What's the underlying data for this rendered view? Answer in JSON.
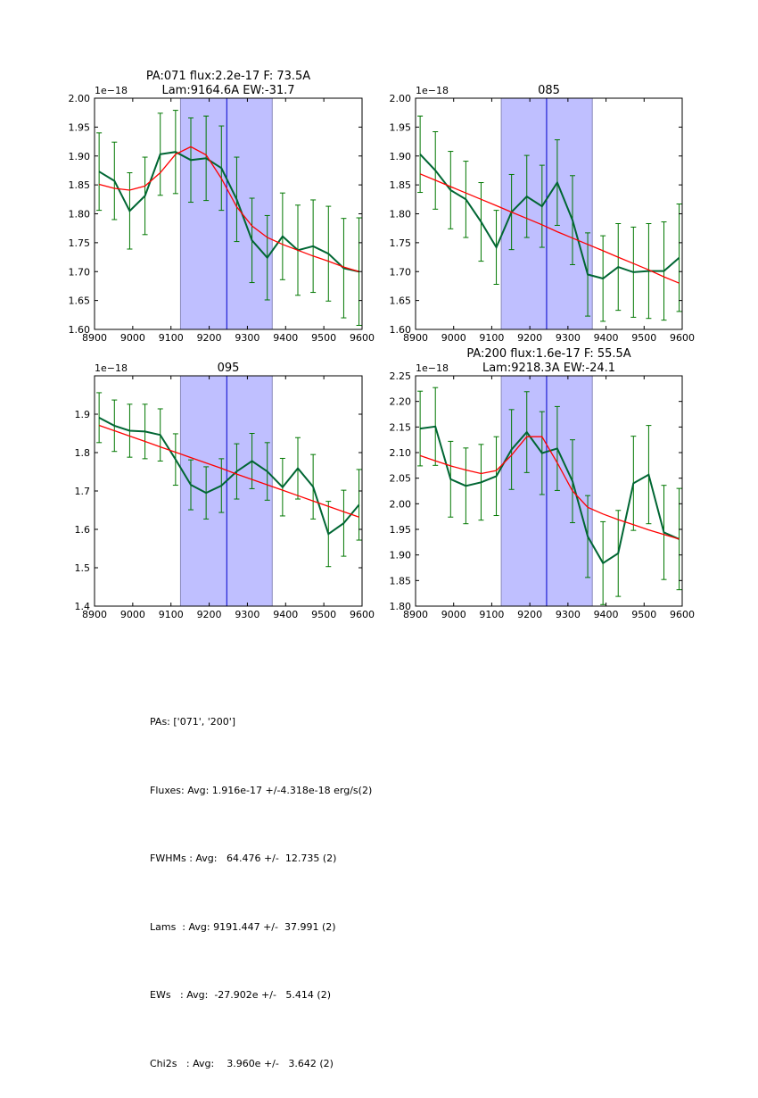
{
  "figure": {
    "stats_lines": [
      "PAs: ['071', '200']",
      "Fluxes: Avg: 1.916e-17 +/-4.318e-18 erg/s(2)",
      "FWHMs : Avg:   64.476 +/-  12.735 (2)",
      "Lams  : Avg: 9191.447 +/-  37.991 (2)",
      "EWs   : Avg:  -27.902e +/-   5.414 (2)",
      "Chi2s   : Avg:    3.960e +/-   3.642 (2)"
    ],
    "colors": {
      "data_line": "#006633",
      "errorbar": "#007700",
      "model_line": "#ff0000",
      "band_fill": "#bfbfff",
      "band_edge": "#8888bb",
      "center_line": "#0000cc"
    }
  },
  "chart_data": [
    {
      "type": "line",
      "panel": "top-left",
      "title": "PA:071 flux:2.2e-17 F: 73.5A\nLam:9164.6A EW:-31.7",
      "xlabel": "",
      "ylabel": "",
      "offset_label": "1e−18",
      "xlim": [
        8900,
        9600
      ],
      "ylim": [
        1.6,
        2.0
      ],
      "xticks": [
        8900,
        9000,
        9100,
        9200,
        9300,
        9400,
        9500,
        9600
      ],
      "yticks": [
        "1.60",
        "1.65",
        "1.70",
        "1.75",
        "1.80",
        "1.85",
        "1.90",
        "1.95",
        "2.00"
      ],
      "band": [
        9125,
        9365
      ],
      "center": 9246,
      "x": [
        8912,
        8952,
        8992,
        9032,
        9072,
        9112,
        9152,
        9192,
        9232,
        9272,
        9312,
        9352,
        9392,
        9432,
        9472,
        9512,
        9552,
        9592
      ],
      "series": [
        {
          "name": "data",
          "values": [
            1.873,
            1.857,
            1.805,
            1.831,
            1.903,
            1.907,
            1.893,
            1.896,
            1.879,
            1.825,
            1.754,
            1.724,
            1.761,
            1.737,
            1.744,
            1.731,
            1.706,
            1.7
          ],
          "errors": [
            0.067,
            0.067,
            0.066,
            0.067,
            0.071,
            0.072,
            0.073,
            0.073,
            0.073,
            0.073,
            0.073,
            0.073,
            0.075,
            0.078,
            0.08,
            0.082,
            0.086,
            0.093
          ]
        },
        {
          "name": "model",
          "values": [
            1.851,
            1.844,
            1.841,
            1.848,
            1.871,
            1.903,
            1.916,
            1.902,
            1.861,
            1.812,
            1.779,
            1.759,
            1.747,
            1.737,
            1.727,
            1.718,
            1.708,
            1.7
          ]
        }
      ]
    },
    {
      "type": "line",
      "panel": "top-right",
      "title": "085",
      "xlabel": "",
      "ylabel": "",
      "offset_label": "1e−18",
      "xlim": [
        8900,
        9600
      ],
      "ylim": [
        1.6,
        2.0
      ],
      "xticks": [
        8900,
        9000,
        9100,
        9200,
        9300,
        9400,
        9500,
        9600
      ],
      "yticks": [
        "1.60",
        "1.65",
        "1.70",
        "1.75",
        "1.80",
        "1.85",
        "1.90",
        "1.95",
        "2.00"
      ],
      "band": [
        9125,
        9364
      ],
      "center": 9244,
      "x": [
        8912,
        8952,
        8992,
        9032,
        9072,
        9112,
        9152,
        9192,
        9232,
        9272,
        9312,
        9352,
        9392,
        9432,
        9472,
        9512,
        9552,
        9592
      ],
      "series": [
        {
          "name": "data",
          "values": [
            1.903,
            1.875,
            1.841,
            1.825,
            1.786,
            1.742,
            1.803,
            1.83,
            1.813,
            1.854,
            1.789,
            1.695,
            1.688,
            1.708,
            1.699,
            1.701,
            1.701,
            1.724
          ],
          "errors": [
            0.066,
            0.067,
            0.067,
            0.066,
            0.068,
            0.064,
            0.065,
            0.071,
            0.071,
            0.074,
            0.077,
            0.072,
            0.074,
            0.075,
            0.078,
            0.082,
            0.085,
            0.093
          ]
        },
        {
          "name": "model",
          "values": [
            1.869,
            1.858,
            1.847,
            1.836,
            1.825,
            1.814,
            1.803,
            1.792,
            1.781,
            1.769,
            1.758,
            1.747,
            1.736,
            1.725,
            1.714,
            1.703,
            1.691,
            1.68
          ]
        }
      ]
    },
    {
      "type": "line",
      "panel": "bottom-left",
      "title": "095",
      "xlabel": "",
      "ylabel": "",
      "offset_label": "1e−18",
      "xlim": [
        8900,
        9600
      ],
      "ylim": [
        1.4,
        2.0
      ],
      "xticks": [
        8900,
        9000,
        9100,
        9200,
        9300,
        9400,
        9500,
        9600
      ],
      "yticks": [
        "1.4",
        "1.5",
        "1.6",
        "1.7",
        "1.8",
        "1.9"
      ],
      "band": [
        9125,
        9365
      ],
      "center": 9246,
      "x": [
        8912,
        8952,
        8992,
        9032,
        9072,
        9112,
        9152,
        9192,
        9232,
        9272,
        9312,
        9352,
        9392,
        9432,
        9472,
        9512,
        9552,
        9592
      ],
      "series": [
        {
          "name": "data",
          "values": [
            1.891,
            1.87,
            1.857,
            1.855,
            1.846,
            1.782,
            1.716,
            1.695,
            1.714,
            1.751,
            1.778,
            1.751,
            1.71,
            1.759,
            1.711,
            1.588,
            1.616,
            1.664
          ],
          "errors": [
            0.065,
            0.067,
            0.069,
            0.071,
            0.068,
            0.067,
            0.065,
            0.068,
            0.07,
            0.072,
            0.072,
            0.075,
            0.075,
            0.08,
            0.084,
            0.085,
            0.086,
            0.092
          ]
        },
        {
          "name": "model",
          "values": [
            1.871,
            1.857,
            1.843,
            1.829,
            1.815,
            1.801,
            1.787,
            1.773,
            1.759,
            1.744,
            1.73,
            1.716,
            1.702,
            1.688,
            1.674,
            1.66,
            1.646,
            1.632
          ]
        }
      ]
    },
    {
      "type": "line",
      "panel": "bottom-right",
      "title": "PA:200 flux:1.6e-17 F: 55.5A\nLam:9218.3A EW:-24.1",
      "xlabel": "",
      "ylabel": "",
      "offset_label": "1e−18",
      "xlim": [
        8900,
        9600
      ],
      "ylim": [
        1.8,
        2.25
      ],
      "xticks": [
        8900,
        9000,
        9100,
        9200,
        9300,
        9400,
        9500,
        9600
      ],
      "yticks": [
        "1.80",
        "1.85",
        "1.90",
        "1.95",
        "2.00",
        "2.05",
        "2.10",
        "2.15",
        "2.20",
        "2.25"
      ],
      "band": [
        9125,
        9364
      ],
      "center": 9244,
      "x": [
        8912,
        8952,
        8992,
        9032,
        9072,
        9112,
        9152,
        9192,
        9232,
        9272,
        9312,
        9352,
        9392,
        9432,
        9472,
        9512,
        9552,
        9592
      ],
      "series": [
        {
          "name": "data",
          "values": [
            2.147,
            2.151,
            2.048,
            2.035,
            2.042,
            2.054,
            2.106,
            2.14,
            2.099,
            2.108,
            2.044,
            1.936,
            1.884,
            1.903,
            2.04,
            2.057,
            1.944,
            1.931
          ],
          "errors": [
            0.073,
            0.076,
            0.074,
            0.074,
            0.074,
            0.077,
            0.078,
            0.079,
            0.081,
            0.082,
            0.081,
            0.08,
            0.081,
            0.084,
            0.092,
            0.096,
            0.092,
            0.099
          ]
        },
        {
          "name": "model",
          "values": [
            2.094,
            2.084,
            2.074,
            2.066,
            2.059,
            2.065,
            2.095,
            2.131,
            2.131,
            2.08,
            2.025,
            1.993,
            1.98,
            1.969,
            1.959,
            1.949,
            1.94,
            1.931
          ]
        }
      ]
    }
  ]
}
